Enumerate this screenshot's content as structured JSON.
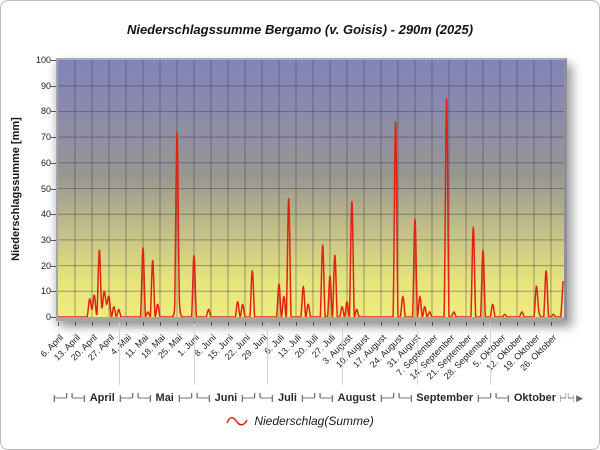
{
  "window": {
    "background": "#ffffff",
    "frame_border": "#bcbcbc"
  },
  "chart_data": {
    "type": "line",
    "title": "Niederschlagssumme Bergamo (v. Goisis) - 290m (2025)",
    "ylabel": "Niederschlagssumme [mm]",
    "xlabel": "",
    "ylim": [
      0,
      100
    ],
    "y_ticks": [
      0,
      10,
      20,
      30,
      40,
      50,
      60,
      70,
      80,
      90,
      100
    ],
    "grid": true,
    "legend_position": "bottom-center",
    "x_tick_labels": [
      "6. April",
      "13. April",
      "20. April",
      "27. April",
      "4. Mai",
      "11. Mai",
      "18. Mai",
      "25. Mai",
      "1. Juni",
      "8. Juni",
      "15. Juni",
      "22. Juni",
      "29. Juni",
      "6. Juli",
      "13. Juli",
      "20. Juli",
      "27. Juli",
      "3. August",
      "10. August",
      "17. August",
      "24. August",
      "31. August",
      "7. September",
      "14. September",
      "21. September",
      "28. September",
      "5. Oktober",
      "12. Oktober",
      "19. Oktober",
      "26. Oktober"
    ],
    "month_band": {
      "labels": [
        "April",
        "Mai",
        "Juni",
        "Juli",
        "August",
        "September",
        "Oktober"
      ],
      "arrow": "▶"
    },
    "series": [
      {
        "name": "Niederschlag(Summe)",
        "color": "#e32212",
        "start_date": "2025-04-06",
        "end_date": "2025-10-31",
        "baseline_mm": 0,
        "note": "daily precipitation sums; days not listed are 0 mm",
        "points": [
          [
            "2025-04-19",
            7
          ],
          [
            "2025-04-20",
            3
          ],
          [
            "2025-04-21",
            8.5
          ],
          [
            "2025-04-22",
            1
          ],
          [
            "2025-04-23",
            26
          ],
          [
            "2025-04-24",
            4
          ],
          [
            "2025-04-25",
            10
          ],
          [
            "2025-04-26",
            5
          ],
          [
            "2025-04-27",
            8
          ],
          [
            "2025-04-29",
            4
          ],
          [
            "2025-05-01",
            3
          ],
          [
            "2025-05-11",
            27
          ],
          [
            "2025-05-13",
            2
          ],
          [
            "2025-05-15",
            22
          ],
          [
            "2025-05-17",
            5
          ],
          [
            "2025-05-24",
            3
          ],
          [
            "2025-05-25",
            72
          ],
          [
            "2025-05-26",
            6
          ],
          [
            "2025-06-01",
            24
          ],
          [
            "2025-06-07",
            3
          ],
          [
            "2025-06-19",
            6
          ],
          [
            "2025-06-21",
            5
          ],
          [
            "2025-06-25",
            18
          ],
          [
            "2025-07-06",
            13
          ],
          [
            "2025-07-08",
            8
          ],
          [
            "2025-07-10",
            46
          ],
          [
            "2025-07-16",
            12
          ],
          [
            "2025-07-18",
            5
          ],
          [
            "2025-07-24",
            28
          ],
          [
            "2025-07-27",
            16
          ],
          [
            "2025-07-29",
            24
          ],
          [
            "2025-08-01",
            4
          ],
          [
            "2025-08-03",
            6
          ],
          [
            "2025-08-05",
            45
          ],
          [
            "2025-08-07",
            3
          ],
          [
            "2025-08-23",
            76
          ],
          [
            "2025-08-26",
            8
          ],
          [
            "2025-08-31",
            38
          ],
          [
            "2025-09-02",
            8
          ],
          [
            "2025-09-04",
            4
          ],
          [
            "2025-09-06",
            2
          ],
          [
            "2025-09-13",
            85
          ],
          [
            "2025-09-16",
            2
          ],
          [
            "2025-09-24",
            35
          ],
          [
            "2025-09-28",
            26
          ],
          [
            "2025-10-02",
            5
          ],
          [
            "2025-10-07",
            1
          ],
          [
            "2025-10-14",
            2
          ],
          [
            "2025-10-20",
            12
          ],
          [
            "2025-10-21",
            2
          ],
          [
            "2025-10-24",
            18
          ],
          [
            "2025-10-27",
            1
          ],
          [
            "2025-10-31",
            14
          ]
        ]
      }
    ],
    "plot_colors": {
      "gradient_top": "#8284ba",
      "gradient_mid": "#989790",
      "gradient_bottom": "#efed7e",
      "gridline": "rgba(58,58,82,0.45)",
      "line": "#e32212"
    }
  },
  "legend": {
    "label": "Niederschlag(Summe)"
  }
}
